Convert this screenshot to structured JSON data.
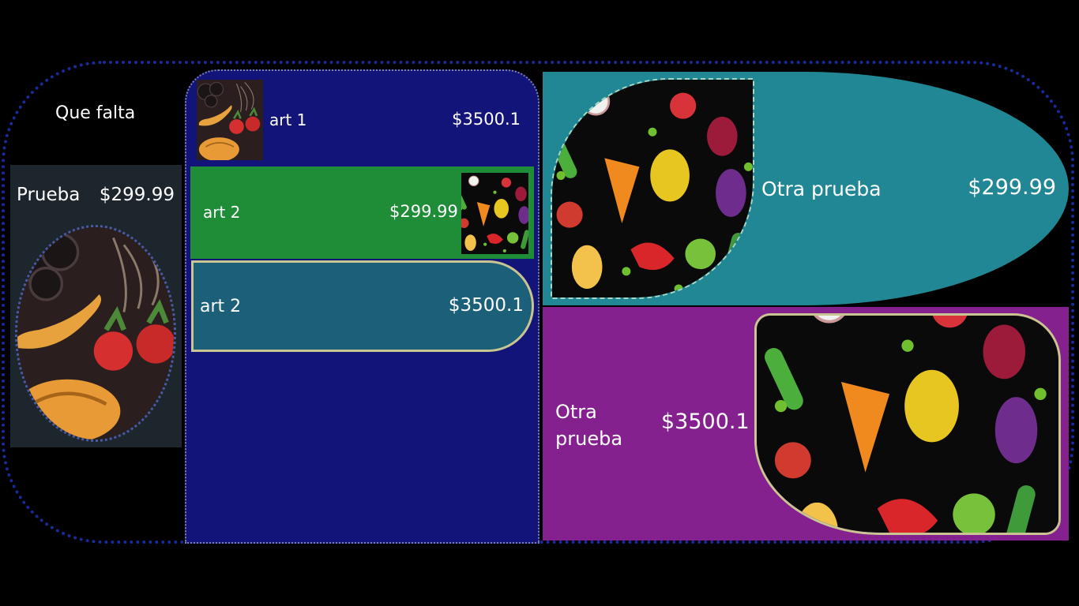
{
  "page": {
    "title": "Que falta"
  },
  "left_card": {
    "label": "Prueba",
    "price": "$299.99"
  },
  "list": {
    "items": [
      {
        "label": "art 1",
        "price": "$3500.1"
      },
      {
        "label": "art 2",
        "price": "$299.99"
      },
      {
        "label": "art 2",
        "price": "$3500.1"
      }
    ]
  },
  "teal_card": {
    "label": "Otra prueba",
    "price": "$299.99"
  },
  "purple_card": {
    "label": "Otra prueba",
    "price": "$3500.1"
  },
  "colors": {
    "background": "#000000",
    "frame_border": "#1b2a9a",
    "left_card": "#1e262d",
    "blue_column": "#12147a",
    "green_row": "#1f8d37",
    "teal_row": "#1b6078",
    "teal_card": "#218795",
    "purple_card": "#84218f"
  }
}
